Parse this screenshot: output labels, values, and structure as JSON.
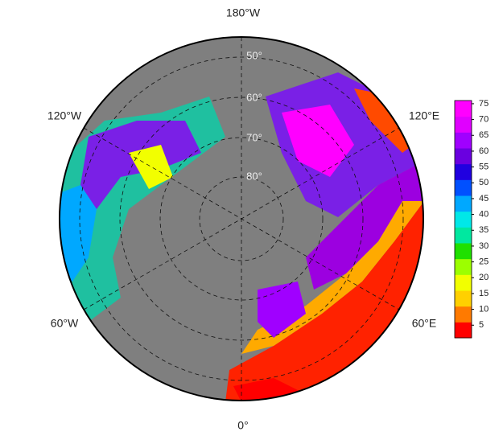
{
  "map": {
    "lon_labels": {
      "top": "180°W",
      "upper_left": "120°W",
      "upper_right": "120°E",
      "lower_left": "60°W",
      "lower_right": "60°E",
      "bottom": "0°"
    },
    "lat_labels": [
      "50°",
      "60°",
      "70°",
      "80°"
    ]
  },
  "colorbar": {
    "lim": [
      1,
      76
    ],
    "ticks": [
      5,
      10,
      15,
      20,
      25,
      30,
      35,
      40,
      45,
      50,
      55,
      60,
      65,
      70,
      75
    ],
    "colors": [
      "#ff0000",
      "#ff7a00",
      "#ffd000",
      "#f2ff00",
      "#9cff00",
      "#1fe000",
      "#00e8a0",
      "#00e8e8",
      "#00a8ff",
      "#0050ff",
      "#2000e0",
      "#6a00e0",
      "#a000ff",
      "#e000ff",
      "#ff00ff"
    ]
  }
}
